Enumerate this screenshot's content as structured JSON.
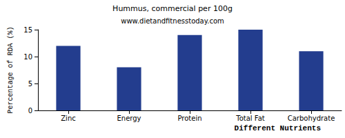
{
  "chart_data": {
    "type": "bar",
    "title": "Hummus, commercial per 100g",
    "subtitle": "www.dietandfitnesstoday.com",
    "x_label": "Different Nutrients",
    "y_label": "Percentage of RDA (%)",
    "categories": [
      "Zinc",
      "Energy",
      "Protein",
      "Total Fat",
      "Carbohydrate"
    ],
    "values": [
      12,
      8,
      14,
      15,
      11
    ],
    "color": "#233d8e",
    "ylim": [
      0,
      15
    ],
    "yticks": [
      0,
      5,
      10,
      15
    ],
    "grid": false
  }
}
